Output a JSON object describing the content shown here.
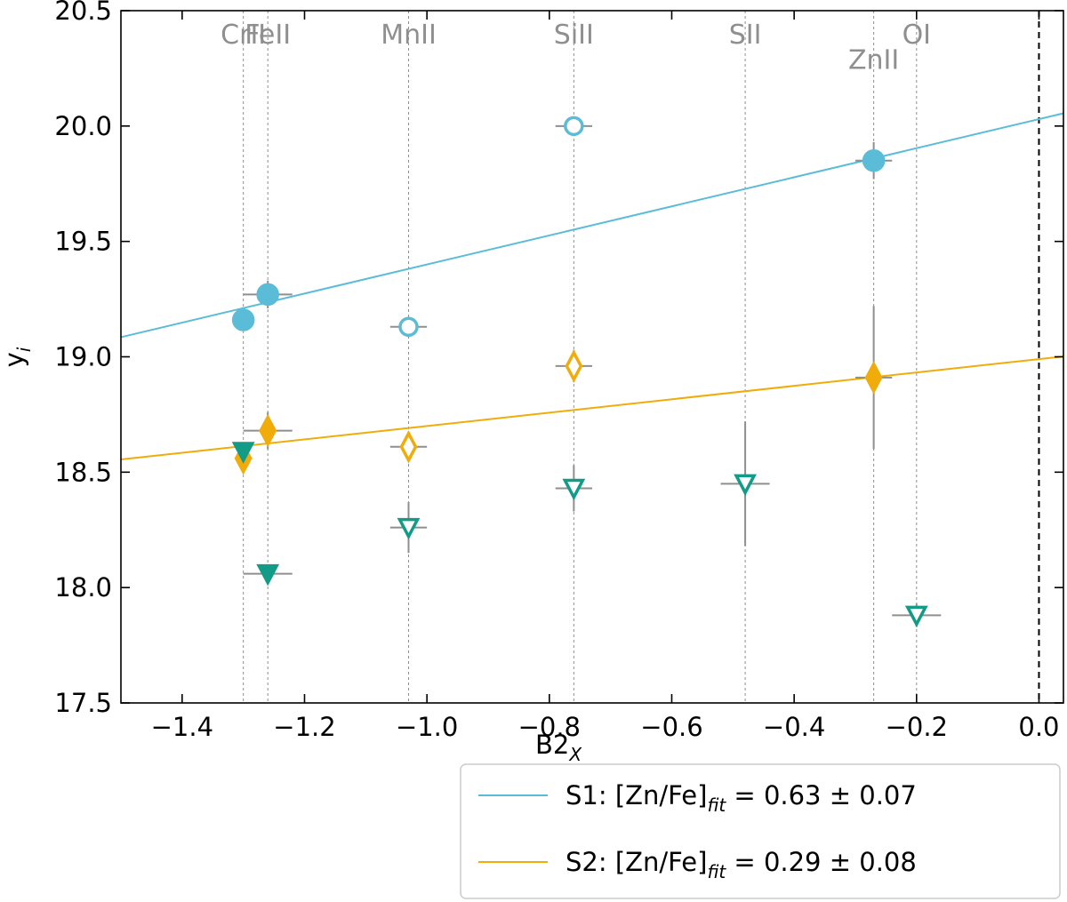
{
  "chart_data": {
    "type": "scatter",
    "xlabel": {
      "main": "B2",
      "sub": "X"
    },
    "ylabel": {
      "main": "y",
      "sub": "i"
    },
    "xlim": [
      -1.5,
      0.04
    ],
    "ylim": [
      17.5,
      20.5
    ],
    "xticks": [
      -1.4,
      -1.2,
      -1.0,
      -0.8,
      -0.6,
      -0.4,
      -0.2,
      0.0
    ],
    "xtick_labels": [
      "−1.4",
      "−1.2",
      "−1.0",
      "−0.8",
      "−0.6",
      "−0.4",
      "−0.2",
      "0.0"
    ],
    "yticks": [
      17.5,
      18.0,
      18.5,
      19.0,
      19.5,
      20.0,
      20.5
    ],
    "ytick_labels": [
      "17.5",
      "18.0",
      "18.5",
      "19.0",
      "19.5",
      "20.0",
      "20.5"
    ],
    "zero_line_x": 0.0,
    "element_lines": [
      {
        "name": "CrII",
        "x": -1.3,
        "label_y": 20.4
      },
      {
        "name": "FeII",
        "x": -1.26,
        "label_y": 20.4
      },
      {
        "name": "MnII",
        "x": -1.03,
        "label_y": 20.4
      },
      {
        "name": "SiII",
        "x": -0.76,
        "label_y": 20.4
      },
      {
        "name": "SII",
        "x": -0.48,
        "label_y": 20.4
      },
      {
        "name": "ZnII",
        "x": -0.27,
        "label_y": 20.29
      },
      {
        "name": "OI",
        "x": -0.2,
        "label_y": 20.4
      }
    ],
    "fits": [
      {
        "legend": {
          "prefix": "S1: [Zn/Fe]",
          "sub": "fit",
          "suffix": " = 0.63 ± 0.07"
        },
        "color": "#5bbcd8",
        "slope": 0.63,
        "intercept": 20.03
      },
      {
        "legend": {
          "prefix": "S2: [Zn/Fe]",
          "sub": "fit",
          "suffix": " = 0.29 ± 0.08"
        },
        "color": "#f0ac0a",
        "slope": 0.29,
        "intercept": 18.99
      }
    ],
    "series": [
      {
        "marker": "circle",
        "color": "#5bbcd8",
        "points": [
          {
            "x": -1.3,
            "y": 19.16,
            "filled": true,
            "xerr": 0.0,
            "yerr": 0.0
          },
          {
            "x": -1.26,
            "y": 19.27,
            "filled": true,
            "xerr": 0.04,
            "yerr": 0.06
          },
          {
            "x": -1.03,
            "y": 19.13,
            "filled": false,
            "xerr": 0.03,
            "yerr": 0.03
          },
          {
            "x": -0.76,
            "y": 20.0,
            "filled": false,
            "xerr": 0.03,
            "yerr": 0.0
          },
          {
            "x": -0.27,
            "y": 19.85,
            "filled": true,
            "xerr": 0.03,
            "yerr": 0.08
          }
        ]
      },
      {
        "marker": "diamond",
        "color": "#f0ac0a",
        "points": [
          {
            "x": -1.3,
            "y": 18.56,
            "filled": true,
            "xerr": 0.0,
            "yerr": 0.0
          },
          {
            "x": -1.26,
            "y": 18.68,
            "filled": true,
            "xerr": 0.04,
            "yerr": 0.08
          },
          {
            "x": -1.03,
            "y": 18.61,
            "filled": false,
            "xerr": 0.03,
            "yerr": 0.03
          },
          {
            "x": -0.76,
            "y": 18.96,
            "filled": false,
            "xerr": 0.03,
            "yerr": 0.07
          },
          {
            "x": -0.27,
            "y": 18.91,
            "filled": true,
            "xerr": 0.03,
            "yerr": 0.31
          }
        ]
      },
      {
        "marker": "triangle-down",
        "color": "#129b87",
        "points": [
          {
            "x": -1.3,
            "y": 18.59,
            "filled": true,
            "xerr": 0.0,
            "yerr": 0.0
          },
          {
            "x": -1.26,
            "y": 18.06,
            "filled": true,
            "xerr": 0.04,
            "yerr": 0.03
          },
          {
            "x": -1.03,
            "y": 18.26,
            "filled": false,
            "xerr": 0.03,
            "yerr": 0.11
          },
          {
            "x": -0.76,
            "y": 18.43,
            "filled": false,
            "xerr": 0.03,
            "yerr": 0.1
          },
          {
            "x": -0.48,
            "y": 18.45,
            "filled": false,
            "xerr": 0.04,
            "yerr": 0.27
          },
          {
            "x": -0.2,
            "y": 17.88,
            "filled": false,
            "xerr": 0.04,
            "yerr": 0.05
          }
        ]
      }
    ]
  }
}
